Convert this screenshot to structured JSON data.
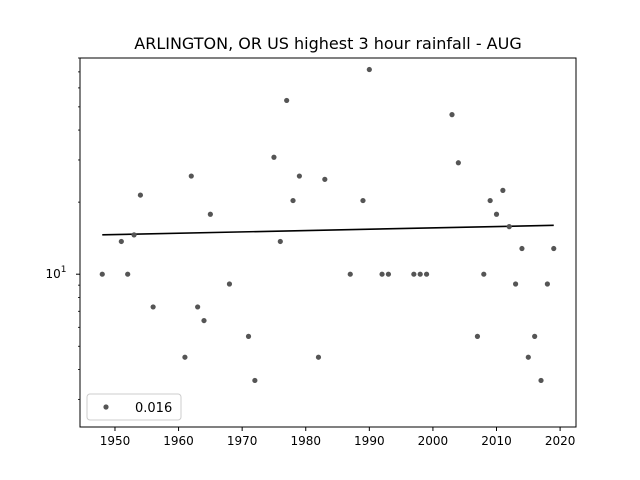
{
  "chart_data": {
    "type": "scatter",
    "title": "ARLINGTON, OR US highest 3 hour rainfall - AUG",
    "xlabel": "",
    "ylabel": "",
    "y_scale": "log",
    "xlim": [
      1944.5,
      2022.5
    ],
    "ylim": [
      2.3,
      80
    ],
    "x_ticks": [
      1950,
      1960,
      1970,
      1980,
      1990,
      2000,
      2010,
      2020
    ],
    "y_ticks": [
      {
        "value": 10,
        "base": "10",
        "exp": "1"
      }
    ],
    "grid": false,
    "legend": {
      "placement": "lower-left",
      "entries": [
        "0.016"
      ]
    },
    "series": [
      {
        "name": "0.016",
        "color": "#555555",
        "points": [
          [
            1948,
            10.0
          ],
          [
            1951,
            13.7
          ],
          [
            1952,
            10.0
          ],
          [
            1953,
            14.6
          ],
          [
            1954,
            21.4
          ],
          [
            1956,
            7.3
          ],
          [
            1961,
            4.5
          ],
          [
            1962,
            25.7
          ],
          [
            1963,
            7.3
          ],
          [
            1964,
            6.4
          ],
          [
            1965,
            17.8
          ],
          [
            1968,
            9.1
          ],
          [
            1971,
            5.5
          ],
          [
            1972,
            3.6
          ],
          [
            1975,
            30.8
          ],
          [
            1976,
            13.7
          ],
          [
            1977,
            53.2
          ],
          [
            1978,
            20.3
          ],
          [
            1979,
            25.7
          ],
          [
            1982,
            4.5
          ],
          [
            1983,
            24.9
          ],
          [
            1987,
            10.0
          ],
          [
            1989,
            20.3
          ],
          [
            1990,
            71.6
          ],
          [
            1992,
            10.0
          ],
          [
            1993,
            10.0
          ],
          [
            1997,
            10.0
          ],
          [
            1998,
            10.0
          ],
          [
            1999,
            10.0
          ],
          [
            2003,
            46.4
          ],
          [
            2004,
            29.2
          ],
          [
            2007,
            5.5
          ],
          [
            2008,
            10.0
          ],
          [
            2009,
            20.3
          ],
          [
            2010,
            17.8
          ],
          [
            2011,
            22.4
          ],
          [
            2012,
            15.8
          ],
          [
            2013,
            9.1
          ],
          [
            2014,
            12.8
          ],
          [
            2015,
            4.5
          ],
          [
            2016,
            5.5
          ],
          [
            2017,
            3.6
          ],
          [
            2018,
            9.1
          ],
          [
            2019,
            12.8
          ]
        ]
      }
    ],
    "trend_line": {
      "color": "#000000",
      "x": [
        1948,
        2019
      ],
      "y": [
        14.6,
        16.0
      ]
    }
  }
}
